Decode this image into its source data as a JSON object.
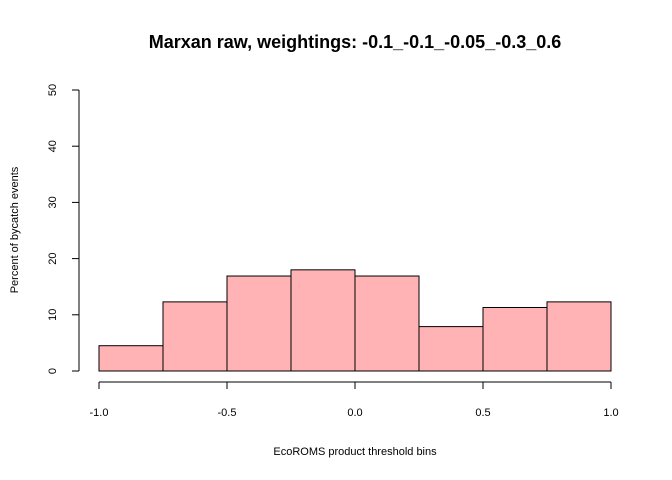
{
  "chart_data": {
    "type": "bar",
    "title": "Marxan raw, weightings: -0.1_-0.1_-0.05_-0.3_0.6",
    "xlabel": "EcoROMS product threshold bins",
    "ylabel": "Percent of bycatch events",
    "xlim": [
      -1.0,
      1.0
    ],
    "ylim": [
      0,
      50
    ],
    "bins": [
      {
        "x0": -1.0,
        "x1": -0.75,
        "value": 4.5
      },
      {
        "x0": -0.75,
        "x1": -0.5,
        "value": 12.3
      },
      {
        "x0": -0.5,
        "x1": -0.25,
        "value": 16.9
      },
      {
        "x0": -0.25,
        "x1": 0.0,
        "value": 18.0
      },
      {
        "x0": 0.0,
        "x1": 0.25,
        "value": 16.9
      },
      {
        "x0": 0.25,
        "x1": 0.5,
        "value": 7.9
      },
      {
        "x0": 0.5,
        "x1": 0.75,
        "value": 11.3
      },
      {
        "x0": 0.75,
        "x1": 1.0,
        "value": 12.3
      }
    ],
    "xticks": [
      "-1.0",
      "-0.5",
      "0.0",
      "0.5",
      "1.0"
    ],
    "xtick_values": [
      -1.0,
      -0.5,
      0.0,
      0.5,
      1.0
    ],
    "yticks": [
      "0",
      "10",
      "20",
      "30",
      "40",
      "50"
    ],
    "ytick_values": [
      0,
      10,
      20,
      30,
      40,
      50
    ],
    "grid": false,
    "bar_color": "#FFB3B5"
  }
}
